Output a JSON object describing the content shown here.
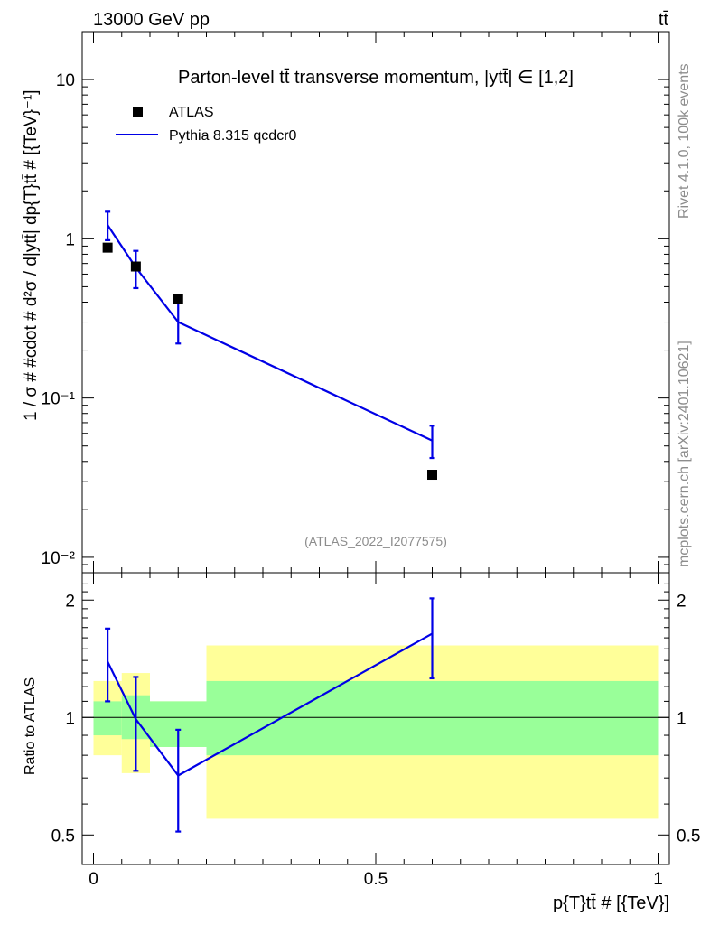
{
  "header": {
    "left": "13000 GeV pp",
    "right": "tt̄"
  },
  "side_labels": {
    "rivet": "Rivet 4.1.0,  100k events",
    "mcplots": "mcplots.cern.ch [arXiv:2401.10621]"
  },
  "colors": {
    "mc": "#0000e6",
    "data": "#000000",
    "band_inner": "#99ff99",
    "band_outer": "#ffff99"
  },
  "chart_data": [
    {
      "type": "scatter",
      "panel": "main",
      "title": "Parton-level tt̄ transverse momentum, |ytt̄| ∈ [1,2]",
      "watermark": "(ATLAS_2022_I2077575)",
      "ylabel": "1 / σ # #cdot # d²σ / d|ytt̄| dp{T}tt̄ # [{TeV}⁻¹]",
      "xlabel": "p{T}tt̄ # [{TeV}]",
      "yscale": "log",
      "xlim": [
        -0.02,
        1.02
      ],
      "ylim": [
        0.008,
        20
      ],
      "y_ticks": [
        {
          "value": 0.01,
          "label": "10⁻²"
        },
        {
          "value": 0.1,
          "label": "10⁻¹"
        },
        {
          "value": 1,
          "label": "1"
        },
        {
          "value": 10,
          "label": "10"
        }
      ],
      "legend_position": "top-left",
      "series": [
        {
          "name": "ATLAS",
          "kind": "markers",
          "x": [
            0.025,
            0.075,
            0.15,
            0.6
          ],
          "y": [
            0.88,
            0.67,
            0.42,
            0.033
          ]
        },
        {
          "name": "Pythia 8.315 qcdcr0",
          "kind": "line",
          "x": [
            0.025,
            0.075,
            0.15,
            0.6
          ],
          "y": [
            1.22,
            0.66,
            0.3,
            0.054
          ],
          "err_low": [
            0.98,
            0.49,
            0.22,
            0.042
          ],
          "err_high": [
            1.48,
            0.84,
            0.4,
            0.067
          ]
        }
      ]
    },
    {
      "type": "line",
      "panel": "ratio",
      "ylabel": "Ratio to ATLAS",
      "yscale": "log",
      "xlim": [
        -0.02,
        1.02
      ],
      "ylim": [
        0.42,
        2.35
      ],
      "x_ticks": [
        {
          "value": 0,
          "label": "0"
        },
        {
          "value": 0.5,
          "label": "0.5"
        },
        {
          "value": 1,
          "label": "1"
        }
      ],
      "y_ticks": [
        {
          "value": 0.5,
          "label": "0.5"
        },
        {
          "value": 1,
          "label": "1"
        },
        {
          "value": 2,
          "label": "2"
        }
      ],
      "reference_line": 1,
      "bands": {
        "edges": [
          0,
          0.05,
          0.1,
          0.2,
          1.0
        ],
        "inner_low": [
          0.9,
          0.88,
          0.84,
          0.8
        ],
        "inner_high": [
          1.1,
          1.14,
          1.1,
          1.24
        ],
        "outer_low": [
          0.8,
          0.72,
          0.84,
          0.55
        ],
        "outer_high": [
          1.24,
          1.3,
          1.1,
          1.53
        ]
      },
      "series": [
        {
          "name": "Pythia 8.315 qcdcr0",
          "x": [
            0.025,
            0.075,
            0.15,
            0.6
          ],
          "y": [
            1.39,
            0.99,
            0.71,
            1.64
          ],
          "err_low": [
            1.1,
            0.73,
            0.51,
            1.26
          ],
          "err_high": [
            1.69,
            1.27,
            0.93,
            2.02
          ]
        }
      ]
    }
  ]
}
